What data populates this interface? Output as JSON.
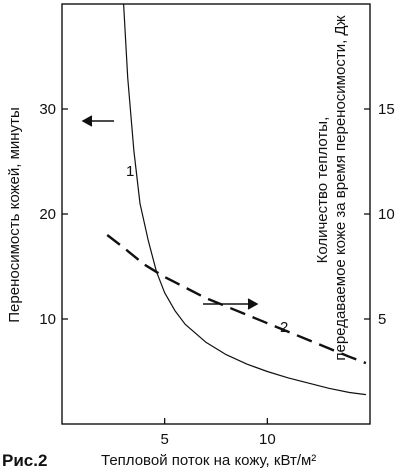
{
  "figure_label": "Рис.2",
  "chart_data": {
    "type": "line",
    "xlabel": "Тепловой поток на кожу, кВт/м²",
    "ylabel_left": "Переносимость кожей, минуты",
    "ylabel_right": "Количество теплоты, передаваемое коже за время переносимости, Дж",
    "xlim": [
      0,
      15
    ],
    "ylim_left": [
      0,
      40
    ],
    "ylim_right": [
      0,
      20
    ],
    "x_ticks": [
      5,
      10
    ],
    "y_ticks_left": [
      10,
      20,
      30
    ],
    "y_ticks_right": [
      5,
      10,
      15
    ],
    "series": [
      {
        "name": "1",
        "axis": "left",
        "style": "solid",
        "x": [
          3.0,
          3.2,
          3.5,
          3.8,
          4.2,
          4.6,
          5.0,
          5.5,
          6.0,
          7.0,
          8.0,
          9.0,
          10.0,
          11.0,
          12.0,
          13.0,
          14.0,
          14.8
        ],
        "y": [
          40.0,
          33.0,
          26.0,
          21.0,
          17.5,
          14.5,
          12.5,
          10.8,
          9.5,
          7.8,
          6.6,
          5.7,
          5.0,
          4.4,
          3.9,
          3.4,
          3.0,
          2.8
        ]
      },
      {
        "name": "2",
        "axis": "right",
        "style": "dashed",
        "x": [
          2.2,
          3.0,
          4.0,
          5.0,
          6.0,
          7.0,
          8.0,
          9.0,
          10.0,
          11.0,
          12.0,
          13.0,
          14.0,
          14.8
        ],
        "y": [
          9.0,
          8.4,
          7.6,
          7.0,
          6.5,
          6.0,
          5.6,
          5.2,
          4.8,
          4.4,
          4.0,
          3.6,
          3.2,
          2.9
        ]
      }
    ],
    "curve_labels": [
      "1",
      "2"
    ],
    "grid": false
  }
}
